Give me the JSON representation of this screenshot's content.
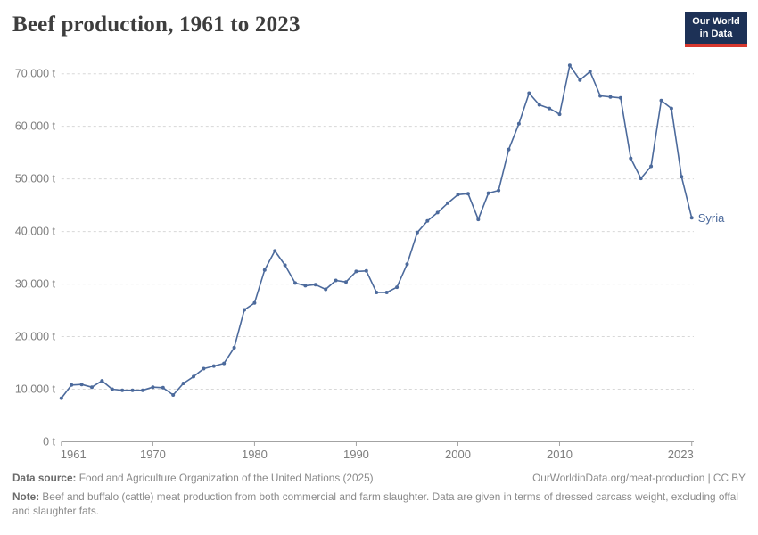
{
  "header": {
    "title": "Beef production, 1961 to 2023"
  },
  "logo": {
    "line1": "Our World",
    "line2": "in Data"
  },
  "chart_data": {
    "type": "line",
    "title": "Beef production, 1961 to 2023",
    "entity_label": "Syria",
    "unit_suffix": " t",
    "grid": "horizontal-dashed",
    "legend_position": "end-of-line-label",
    "xlim": [
      1961,
      2023
    ],
    "ylim": [
      0,
      74000
    ],
    "xticks": [
      1961,
      1970,
      1980,
      1990,
      2000,
      2010,
      2023
    ],
    "yticks": [
      0,
      10000,
      20000,
      30000,
      40000,
      50000,
      60000,
      70000
    ],
    "years": [
      1961,
      1962,
      1963,
      1964,
      1965,
      1966,
      1967,
      1968,
      1969,
      1970,
      1971,
      1972,
      1973,
      1974,
      1975,
      1976,
      1977,
      1978,
      1979,
      1980,
      1981,
      1982,
      1983,
      1984,
      1985,
      1986,
      1987,
      1988,
      1989,
      1990,
      1991,
      1992,
      1993,
      1994,
      1995,
      1996,
      1997,
      1998,
      1999,
      2000,
      2001,
      2002,
      2003,
      2004,
      2005,
      2006,
      2007,
      2008,
      2009,
      2010,
      2011,
      2012,
      2013,
      2014,
      2015,
      2016,
      2017,
      2018,
      2019,
      2020,
      2021,
      2022,
      2023
    ],
    "series": [
      {
        "name": "Syria",
        "values": [
          8300,
          10800,
          10900,
          10400,
          11600,
          10000,
          9800,
          9800,
          9800,
          10400,
          10300,
          8900,
          11100,
          12400,
          13900,
          14400,
          14900,
          17900,
          25100,
          26400,
          32700,
          36300,
          33600,
          30200,
          29700,
          29900,
          29000,
          30700,
          30400,
          32400,
          32500,
          28400,
          28400,
          29400,
          33800,
          39800,
          42000,
          43600,
          45400,
          47000,
          47200,
          42300,
          47300,
          47800,
          55600,
          60500,
          66300,
          64100,
          63400,
          62300,
          71600,
          68800,
          70400,
          65800,
          65600,
          65400,
          53900,
          50100,
          52400,
          64900,
          63400,
          50400,
          42600
        ]
      }
    ]
  },
  "footer": {
    "source_label": "Data source:",
    "source_text": " Food and Agriculture Organization of the United Nations (2025)",
    "attribution": "OurWorldinData.org/meat-production | CC BY",
    "note_label": "Note:",
    "note_text": " Beef and buffalo (cattle) meat production from both commercial and farm slaughter. Data are given in terms of dressed carcass weight, excluding offal and slaughter fats."
  },
  "colors": {
    "line": "#4c6a9c",
    "entity_label": "#4c6a9c",
    "grid": "#d8d8d8",
    "axis": "#a3a3a3",
    "tick_label": "#7d7d7d",
    "title": "#3d3d3d",
    "footer": "#8a8a8a",
    "logo_bg": "#1d3156",
    "logo_bar": "#d7382e"
  }
}
